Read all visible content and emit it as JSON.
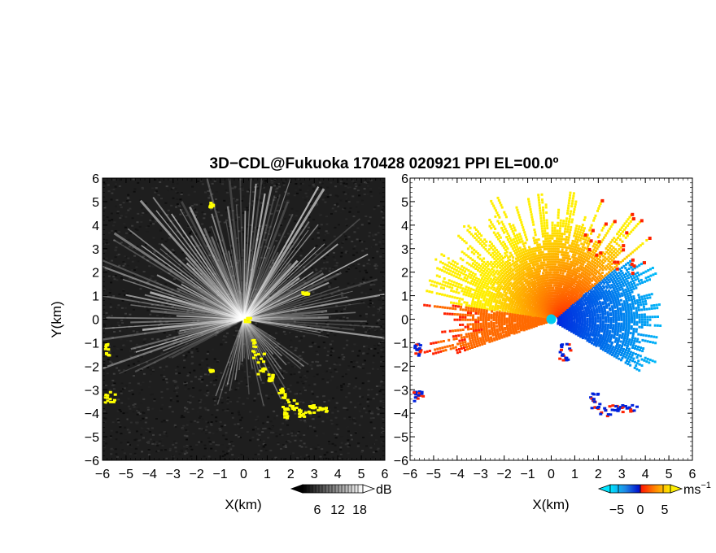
{
  "title": "3D−CDL@Fukuoka 170428 020921 PPI EL=00.0º",
  "chart_data": [
    {
      "panel": "left",
      "type": "heatmap",
      "quantity": "reflectivity",
      "xlabel": "X(km)",
      "ylabel": "Y(km)",
      "xlim": [
        -6,
        6
      ],
      "ylim": [
        -6,
        6
      ],
      "xticks": [
        "−6",
        "−5",
        "−4",
        "−3",
        "−2",
        "−1",
        "0",
        "1",
        "2",
        "3",
        "4",
        "5",
        "6"
      ],
      "yticks": [
        "6",
        "5",
        "4",
        "3",
        "2",
        "1",
        "0",
        "−1",
        "−2",
        "−3",
        "−4",
        "−5",
        "−6"
      ],
      "grid": false,
      "colorbar": {
        "unit": "dB",
        "ticks": [
          "6",
          "12",
          "18"
        ],
        "values": [
          6,
          12,
          18
        ]
      },
      "background_color": "#1e1e1e",
      "echo_color": "#ffffff",
      "highlight_color": "#ffff00"
    },
    {
      "panel": "right",
      "type": "heatmap",
      "quantity": "radial velocity",
      "xlabel": "X(km)",
      "ylabel": "",
      "xlim": [
        -6,
        6
      ],
      "ylim": [
        -6,
        6
      ],
      "xticks": [
        "−6",
        "−5",
        "−4",
        "−3",
        "−2",
        "−1",
        "0",
        "1",
        "2",
        "3",
        "4",
        "5",
        "6"
      ],
      "grid": false,
      "colorbar": {
        "unit": "ms−1",
        "unit_base": "ms",
        "unit_exp": "−1",
        "ticks": [
          "−5",
          "0",
          "5"
        ],
        "values": [
          -5,
          0,
          5
        ]
      },
      "colors": {
        "neg_strong": "#0022dd",
        "neg_light": "#00ddff",
        "pos_strong": "#ff2200",
        "pos_light": "#ffee00",
        "center": "#00ccee"
      }
    }
  ]
}
